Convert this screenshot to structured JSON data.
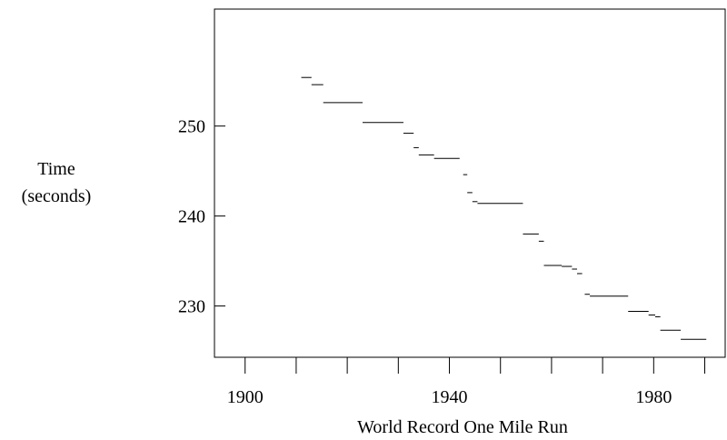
{
  "chart_data": {
    "type": "line",
    "title": "",
    "xlabel": "World Record One Mile Run",
    "ylabel": [
      "Time",
      "(seconds)"
    ],
    "xlim": [
      1894,
      1994
    ],
    "ylim": [
      224.3,
      263
    ],
    "xticks": [
      1900,
      1910,
      1920,
      1930,
      1940,
      1950,
      1960,
      1970,
      1980,
      1990
    ],
    "xtick_labels": [
      {
        "value": 1900,
        "label": "1900"
      },
      {
        "value": 1940,
        "label": "1940"
      },
      {
        "value": 1980,
        "label": "1980"
      }
    ],
    "yticks": [
      {
        "value": 230,
        "label": "230"
      },
      {
        "value": 240,
        "label": "240"
      },
      {
        "value": 250,
        "label": "250"
      }
    ],
    "grid": false,
    "series": [
      {
        "style": "step-segments",
        "segments": [
          {
            "x0": 1911.0,
            "x1": 1913.0,
            "y": 255.4
          },
          {
            "x0": 1913.0,
            "x1": 1915.3,
            "y": 254.6
          },
          {
            "x0": 1915.3,
            "x1": 1923.0,
            "y": 252.6
          },
          {
            "x0": 1923.0,
            "x1": 1931.0,
            "y": 250.4
          },
          {
            "x0": 1931.0,
            "x1": 1933.0,
            "y": 249.2
          },
          {
            "x0": 1933.0,
            "x1": 1934.0,
            "y": 247.6
          },
          {
            "x0": 1934.0,
            "x1": 1937.0,
            "y": 246.8
          },
          {
            "x0": 1937.0,
            "x1": 1942.0,
            "y": 246.4
          },
          {
            "x0": 1942.7,
            "x1": 1943.5,
            "y": 244.6
          },
          {
            "x0": 1943.5,
            "x1": 1944.5,
            "y": 242.6
          },
          {
            "x0": 1944.5,
            "x1": 1945.5,
            "y": 241.6
          },
          {
            "x0": 1945.5,
            "x1": 1954.4,
            "y": 241.4
          },
          {
            "x0": 1954.4,
            "x1": 1957.5,
            "y": 238.0
          },
          {
            "x0": 1957.5,
            "x1": 1958.5,
            "y": 237.2
          },
          {
            "x0": 1958.5,
            "x1": 1962.0,
            "y": 234.5
          },
          {
            "x0": 1962.0,
            "x1": 1964.0,
            "y": 234.4
          },
          {
            "x0": 1964.0,
            "x1": 1965.0,
            "y": 234.1
          },
          {
            "x0": 1965.0,
            "x1": 1966.0,
            "y": 233.6
          },
          {
            "x0": 1966.5,
            "x1": 1967.5,
            "y": 231.3
          },
          {
            "x0": 1967.5,
            "x1": 1975.0,
            "y": 231.1
          },
          {
            "x0": 1975.0,
            "x1": 1979.0,
            "y": 229.4
          },
          {
            "x0": 1979.0,
            "x1": 1980.3,
            "y": 229.0
          },
          {
            "x0": 1980.3,
            "x1": 1981.3,
            "y": 228.8
          },
          {
            "x0": 1981.3,
            "x1": 1985.3,
            "y": 227.3
          },
          {
            "x0": 1985.3,
            "x1": 1990.3,
            "y": 226.3
          }
        ]
      }
    ]
  }
}
